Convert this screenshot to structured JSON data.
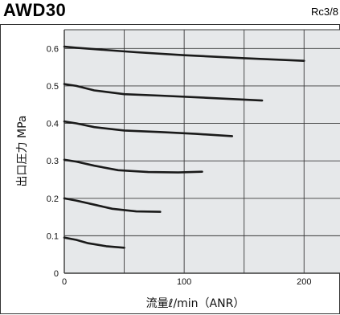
{
  "header": {
    "model": "AWD30",
    "port": "Rc3/8"
  },
  "chart_data": {
    "type": "line",
    "title": "AWD30",
    "subtitle": "Rc3/8",
    "xlabel": "流量ℓ/min（ANR）",
    "ylabel": "出口圧力 MPa",
    "xlim": [
      0,
      230
    ],
    "ylim": [
      0,
      0.65
    ],
    "x_ticks": [
      "0",
      "100",
      "200"
    ],
    "y_ticks": [
      "0",
      "0.1",
      "0.2",
      "0.3",
      "0.4",
      "0.5",
      "0.6"
    ],
    "grid": true,
    "colors": {
      "plot_bg": "#e6e8ea",
      "grid": "#3a3a3a",
      "line": "#1a1a1a"
    },
    "series": [
      {
        "x": [
          0,
          10,
          30,
          60,
          100,
          150,
          200
        ],
        "y": [
          0.605,
          0.602,
          0.597,
          0.59,
          0.582,
          0.574,
          0.567
        ]
      },
      {
        "x": [
          0,
          10,
          25,
          50,
          80,
          120,
          165
        ],
        "y": [
          0.505,
          0.5,
          0.488,
          0.478,
          0.474,
          0.468,
          0.461
        ]
      },
      {
        "x": [
          0,
          10,
          25,
          50,
          80,
          110,
          140
        ],
        "y": [
          0.405,
          0.4,
          0.39,
          0.381,
          0.377,
          0.372,
          0.366
        ]
      },
      {
        "x": [
          0,
          10,
          25,
          45,
          70,
          95,
          115
        ],
        "y": [
          0.303,
          0.298,
          0.287,
          0.275,
          0.27,
          0.269,
          0.271
        ]
      },
      {
        "x": [
          0,
          10,
          25,
          40,
          60,
          80
        ],
        "y": [
          0.2,
          0.194,
          0.183,
          0.172,
          0.165,
          0.164
        ]
      },
      {
        "x": [
          0,
          10,
          20,
          35,
          50
        ],
        "y": [
          0.095,
          0.089,
          0.08,
          0.072,
          0.068
        ]
      }
    ]
  }
}
